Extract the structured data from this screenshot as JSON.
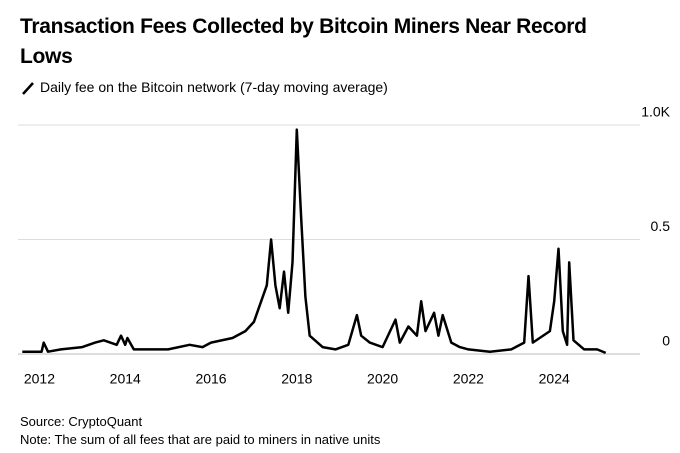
{
  "chart_data": {
    "type": "line",
    "title": "Transaction Fees Collected by Bitcoin Miners Near Record Lows",
    "subtitle": "Daily fee on the Bitcoin network (7-day moving average)",
    "source": "Source: CryptoQuant",
    "note": "Note: The sum of all fees that are paid to miners in native units",
    "xlim": [
      2011.5,
      2026
    ],
    "xticks": [
      2012,
      2014,
      2016,
      2018,
      2020,
      2022,
      2024
    ],
    "ylim": [
      0,
      1
    ],
    "yticks": [
      0,
      0.5,
      {
        "value": 1,
        "label": "1.0K"
      }
    ],
    "grid": true,
    "series": [
      {
        "name": "Daily fee",
        "color": "#000000",
        "x": [
          2011.6,
          2012.05,
          2012.1,
          2012.2,
          2012.5,
          2013.0,
          2013.3,
          2013.5,
          2013.8,
          2013.9,
          2014.0,
          2014.05,
          2014.2,
          2014.6,
          2015.0,
          2015.5,
          2015.8,
          2016.0,
          2016.5,
          2016.8,
          2017.0,
          2017.3,
          2017.4,
          2017.5,
          2017.6,
          2017.7,
          2017.8,
          2017.9,
          2018.0,
          2018.1,
          2018.2,
          2018.3,
          2018.6,
          2018.9,
          2019.2,
          2019.4,
          2019.5,
          2019.7,
          2020.0,
          2020.3,
          2020.4,
          2020.6,
          2020.8,
          2020.9,
          2021.0,
          2021.2,
          2021.3,
          2021.4,
          2021.6,
          2021.8,
          2022.0,
          2022.5,
          2023.0,
          2023.3,
          2023.4,
          2023.5,
          2023.9,
          2024.0,
          2024.1,
          2024.2,
          2024.3,
          2024.35,
          2024.45,
          2024.7,
          2025.0,
          2025.2
        ],
        "values": [
          0.01,
          0.01,
          0.05,
          0.01,
          0.02,
          0.03,
          0.05,
          0.06,
          0.04,
          0.08,
          0.04,
          0.07,
          0.02,
          0.02,
          0.02,
          0.04,
          0.03,
          0.05,
          0.07,
          0.1,
          0.14,
          0.3,
          0.5,
          0.3,
          0.2,
          0.36,
          0.18,
          0.4,
          0.98,
          0.6,
          0.25,
          0.08,
          0.03,
          0.02,
          0.04,
          0.17,
          0.08,
          0.05,
          0.03,
          0.15,
          0.05,
          0.12,
          0.08,
          0.23,
          0.1,
          0.18,
          0.08,
          0.17,
          0.05,
          0.03,
          0.02,
          0.01,
          0.02,
          0.05,
          0.34,
          0.05,
          0.1,
          0.23,
          0.46,
          0.1,
          0.04,
          0.4,
          0.06,
          0.02,
          0.02,
          0.005
        ]
      }
    ]
  }
}
